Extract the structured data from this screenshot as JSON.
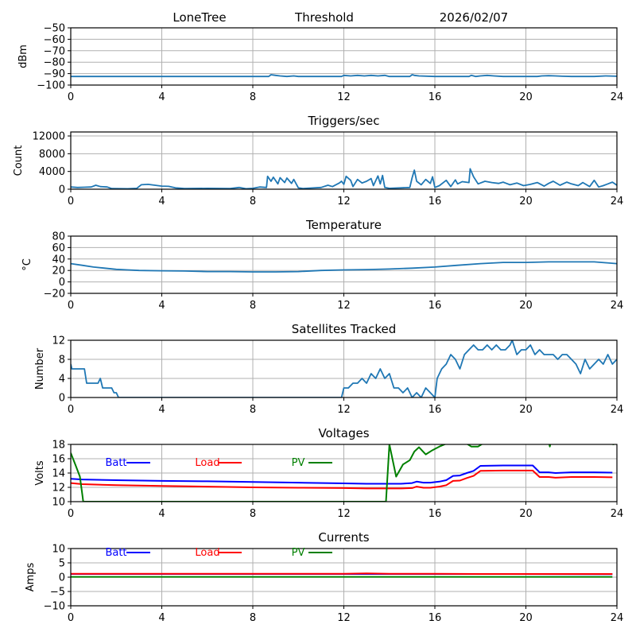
{
  "header": {
    "station": "LoneTree",
    "mode": "Threshold",
    "date": "2026/02/07"
  },
  "chart_data": [
    {
      "type": "line",
      "id": "signal",
      "title": "",
      "ylabel": "dBm",
      "xlim": [
        0,
        24
      ],
      "ylim": [
        -100,
        -50
      ],
      "xticks": [
        0,
        4,
        8,
        12,
        16,
        20,
        24
      ],
      "yticks": [
        -100,
        -90,
        -80,
        -70,
        -60,
        -50
      ],
      "ytick_labels": [
        "−100",
        "−90",
        "−80",
        "−70",
        "−60",
        "−50"
      ],
      "grid": true,
      "series": [
        {
          "name": "Threshold",
          "color": "#1f77b4",
          "x": [
            0,
            8.7,
            8.8,
            9.0,
            9.2,
            9.5,
            9.8,
            10.0,
            11.9,
            12.0,
            12.3,
            12.6,
            12.9,
            13.2,
            13.5,
            13.8,
            14.0,
            14.9,
            15.0,
            15.1,
            15.3,
            16.0,
            17.5,
            17.6,
            17.8,
            18.0,
            18.3,
            18.6,
            19.0,
            20.5,
            20.7,
            21.0,
            21.3,
            21.6,
            22.0,
            23.0,
            23.5,
            24.0
          ],
          "y": [
            -92.5,
            -92.5,
            -91,
            -91.5,
            -92,
            -92.5,
            -92,
            -92.5,
            -92.5,
            -91.5,
            -92,
            -91.5,
            -92,
            -91.5,
            -92,
            -91.5,
            -92.5,
            -92.5,
            -91,
            -91.5,
            -92,
            -92.5,
            -92.5,
            -91.5,
            -92.5,
            -92,
            -91.5,
            -92,
            -92.5,
            -92.5,
            -92,
            -91.8,
            -92,
            -92.3,
            -92.5,
            -92.5,
            -92,
            -92.3
          ]
        }
      ]
    },
    {
      "type": "line",
      "id": "triggers",
      "title": "Triggers/sec",
      "ylabel": "Count",
      "xlim": [
        0,
        24
      ],
      "ylim": [
        0,
        12900
      ],
      "xticks": [
        0,
        4,
        8,
        12,
        16,
        20,
        24
      ],
      "yticks": [
        0,
        4000,
        8000,
        12000
      ],
      "ytick_labels": [
        "0",
        "4000",
        "8000",
        "12000"
      ],
      "grid": true,
      "series": [
        {
          "name": "Triggers",
          "color": "#1f77b4",
          "x": [
            0,
            0.3,
            0.6,
            0.9,
            1.1,
            1.3,
            1.6,
            1.8,
            2.5,
            2.9,
            3.1,
            3.4,
            3.7,
            4.0,
            4.3,
            4.6,
            5.0,
            6.0,
            7.0,
            7.4,
            7.7,
            8.0,
            8.3,
            8.6,
            8.65,
            8.8,
            8.9,
            9.1,
            9.2,
            9.4,
            9.5,
            9.7,
            9.8,
            10.0,
            10.2,
            10.5,
            11.0,
            11.3,
            11.5,
            11.8,
            11.9,
            12.0,
            12.1,
            12.3,
            12.4,
            12.6,
            12.8,
            13.0,
            13.2,
            13.3,
            13.5,
            13.6,
            13.7,
            13.8,
            14.0,
            14.5,
            14.9,
            15.0,
            15.1,
            15.2,
            15.4,
            15.6,
            15.8,
            15.9,
            16.0,
            16.2,
            16.5,
            16.7,
            16.9,
            17.0,
            17.2,
            17.5,
            17.55,
            17.7,
            17.9,
            18.2,
            18.5,
            18.8,
            19.0,
            19.3,
            19.6,
            19.9,
            20.2,
            20.5,
            20.8,
            21.0,
            21.2,
            21.5,
            21.8,
            22.0,
            22.3,
            22.5,
            22.8,
            23.0,
            23.2,
            23.4,
            23.6,
            23.8,
            24.0
          ],
          "y": [
            500,
            400,
            450,
            500,
            900,
            600,
            500,
            150,
            100,
            200,
            1000,
            1100,
            900,
            700,
            650,
            300,
            150,
            200,
            150,
            400,
            100,
            200,
            500,
            400,
            2900,
            1800,
            2700,
            1200,
            2600,
            1500,
            2500,
            1300,
            2200,
            300,
            150,
            250,
            400,
            900,
            600,
            1400,
            1800,
            1100,
            2900,
            2000,
            600,
            2200,
            1400,
            1800,
            2400,
            800,
            3000,
            1200,
            3100,
            400,
            200,
            300,
            400,
            2600,
            4300,
            1800,
            1000,
            2200,
            1300,
            2800,
            400,
            800,
            2000,
            600,
            2100,
            1200,
            1700,
            1500,
            4600,
            2800,
            1200,
            1800,
            1500,
            1300,
            1600,
            1000,
            1400,
            800,
            1100,
            1500,
            700,
            1300,
            1800,
            900,
            1600,
            1200,
            800,
            1500,
            600,
            2000,
            500,
            800,
            1200,
            1600,
            900
          ]
        }
      ]
    },
    {
      "type": "line",
      "id": "temperature",
      "title": "Temperature",
      "ylabel": "°C",
      "xlim": [
        0,
        24
      ],
      "ylim": [
        -20,
        80
      ],
      "xticks": [
        0,
        4,
        8,
        12,
        16,
        20,
        24
      ],
      "yticks": [
        -20,
        0,
        20,
        40,
        60,
        80
      ],
      "ytick_labels": [
        "−20",
        "0",
        "20",
        "40",
        "60",
        "80"
      ],
      "grid": true,
      "series": [
        {
          "name": "Temperature",
          "color": "#1f77b4",
          "x": [
            0,
            0.5,
            1.0,
            1.5,
            2.0,
            2.5,
            3.0,
            4.0,
            5.0,
            6.0,
            7.0,
            8.0,
            9.0,
            10.0,
            11.0,
            12.0,
            13.0,
            14.0,
            15.0,
            16.0,
            17.0,
            18.0,
            19.0,
            20.0,
            21.0,
            22.0,
            23.0,
            23.5,
            24.0
          ],
          "y": [
            32,
            29,
            26,
            24,
            22,
            21,
            20,
            19.5,
            19,
            18,
            18,
            17.5,
            17.5,
            18,
            20,
            21,
            21.5,
            22.5,
            24,
            26,
            29,
            32,
            34,
            34,
            35,
            35,
            35,
            33.5,
            32
          ]
        }
      ]
    },
    {
      "type": "line",
      "id": "satellites",
      "title": "Satellites Tracked",
      "ylabel": "Number",
      "xlim": [
        0,
        24
      ],
      "ylim": [
        0,
        12
      ],
      "xticks": [
        0,
        4,
        8,
        12,
        16,
        20,
        24
      ],
      "yticks": [
        0,
        4,
        8,
        12
      ],
      "ytick_labels": [
        "0",
        "4",
        "8",
        "12"
      ],
      "grid": true,
      "series": [
        {
          "name": "Satellites",
          "color": "#1f77b4",
          "x": [
            0,
            0.05,
            0.1,
            0.6,
            0.7,
            1.0,
            1.2,
            1.3,
            1.4,
            1.6,
            1.8,
            1.9,
            2.0,
            2.1,
            4.0,
            8.0,
            11.9,
            12.0,
            12.2,
            12.4,
            12.6,
            12.8,
            13.0,
            13.2,
            13.4,
            13.6,
            13.8,
            14.0,
            14.2,
            14.4,
            14.6,
            14.8,
            15.0,
            15.2,
            15.4,
            15.6,
            15.8,
            16.0,
            16.1,
            16.3,
            16.5,
            16.7,
            16.9,
            17.1,
            17.3,
            17.5,
            17.7,
            17.9,
            18.1,
            18.3,
            18.5,
            18.7,
            18.9,
            19.1,
            19.3,
            19.4,
            19.6,
            19.8,
            20.0,
            20.2,
            20.4,
            20.6,
            20.8,
            21.0,
            21.2,
            21.4,
            21.6,
            21.8,
            22.0,
            22.2,
            22.4,
            22.6,
            22.8,
            23.0,
            23.2,
            23.4,
            23.6,
            23.8,
            24.0
          ],
          "y": [
            7,
            6,
            6,
            6,
            3,
            3,
            3,
            4,
            2,
            2,
            2,
            1,
            1,
            0,
            0,
            0,
            0,
            2,
            2,
            3,
            3,
            4,
            3,
            5,
            4,
            6,
            4,
            5,
            2,
            2,
            1,
            2,
            0,
            1,
            0,
            2,
            1,
            0,
            4,
            6,
            7,
            9,
            8,
            6,
            9,
            10,
            11,
            10,
            10,
            11,
            10,
            11,
            10,
            10,
            11,
            12,
            9,
            10,
            10,
            11,
            9,
            10,
            9,
            9,
            9,
            8,
            9,
            9,
            8,
            7,
            5,
            8,
            6,
            7,
            8,
            7,
            9,
            7,
            8
          ]
        }
      ]
    },
    {
      "type": "line",
      "id": "voltages",
      "title": "Voltages",
      "ylabel": "Volts",
      "xlim": [
        0,
        24
      ],
      "ylim": [
        10,
        18
      ],
      "xticks": [
        0,
        4,
        8,
        12,
        16,
        20,
        24
      ],
      "yticks": [
        10,
        12,
        14,
        16,
        18
      ],
      "ytick_labels": [
        "10",
        "12",
        "14",
        "16",
        "18"
      ],
      "grid": true,
      "legend": [
        "Batt",
        "Load",
        "PV"
      ],
      "legend_placement": "top-inside-row",
      "series": [
        {
          "name": "Batt",
          "color": "#0000ff",
          "x": [
            0,
            0.5,
            2,
            4,
            6,
            8,
            10,
            12,
            13,
            14,
            14.5,
            15,
            15.2,
            15.5,
            15.8,
            16.2,
            16.5,
            16.8,
            17.1,
            17.4,
            17.7,
            18.0,
            19.0,
            20.0,
            20.3,
            20.6,
            21.0,
            21.3,
            22,
            23,
            23.8
          ],
          "y": [
            13.2,
            13.1,
            13.0,
            12.9,
            12.85,
            12.75,
            12.65,
            12.55,
            12.5,
            12.5,
            12.5,
            12.6,
            12.8,
            12.65,
            12.65,
            12.8,
            13.0,
            13.6,
            13.65,
            14.0,
            14.3,
            15.0,
            15.05,
            15.05,
            15.05,
            14.1,
            14.1,
            14.0,
            14.1,
            14.1,
            14.05
          ]
        },
        {
          "name": "Load",
          "color": "#ff0000",
          "x": [
            0,
            0.5,
            2,
            4,
            6,
            8,
            10,
            12,
            13,
            14,
            14.5,
            15,
            15.2,
            15.5,
            15.8,
            16.2,
            16.5,
            16.8,
            17.1,
            17.4,
            17.7,
            18.0,
            19.0,
            20.0,
            20.3,
            20.6,
            21.0,
            21.3,
            22,
            23,
            23.8
          ],
          "y": [
            12.6,
            12.45,
            12.3,
            12.2,
            12.1,
            12.0,
            11.95,
            11.9,
            11.85,
            11.85,
            11.85,
            11.9,
            12.1,
            11.95,
            11.95,
            12.1,
            12.3,
            12.9,
            12.95,
            13.3,
            13.6,
            14.3,
            14.35,
            14.35,
            14.35,
            13.45,
            13.45,
            13.35,
            13.45,
            13.45,
            13.4
          ]
        },
        {
          "name": "PV",
          "color": "#008000",
          "x": [
            0,
            0.2,
            0.4,
            0.5,
            0.55,
            13.85,
            14.0,
            14.3,
            14.6,
            14.9,
            15.1,
            15.3,
            15.6,
            15.9,
            16.2,
            16.5,
            16.8,
            17.2,
            17.6,
            17.9,
            18.2,
            20.0,
            21.0,
            21.05,
            21.1,
            23.8,
            23.85
          ],
          "y": [
            16.8,
            15.2,
            13.5,
            11.2,
            10.0,
            10.0,
            18.0,
            13.5,
            15.2,
            15.8,
            17.0,
            17.6,
            16.6,
            17.2,
            17.7,
            18.1,
            18.3,
            18.5,
            17.7,
            17.7,
            18.3,
            18.5,
            18.5,
            17.7,
            18.5,
            18.5,
            17.9
          ]
        }
      ]
    },
    {
      "type": "line",
      "id": "currents",
      "title": "Currents",
      "ylabel": "Amps",
      "xlim": [
        0,
        24
      ],
      "ylim": [
        -10,
        10
      ],
      "xticks": [
        0,
        4,
        8,
        12,
        16,
        20,
        24
      ],
      "yticks": [
        -10,
        -5,
        0,
        5,
        10
      ],
      "ytick_labels": [
        "−10",
        "−5",
        "0",
        "5",
        "10"
      ],
      "grid": true,
      "legend": [
        "Batt",
        "Load",
        "PV"
      ],
      "legend_placement": "top-inside-row",
      "series": [
        {
          "name": "Batt",
          "color": "#0000ff",
          "x": [
            0,
            6,
            12,
            18,
            23.8
          ],
          "y": [
            1.1,
            1.1,
            1.1,
            1.1,
            1.05
          ]
        },
        {
          "name": "Load",
          "color": "#ff0000",
          "x": [
            0,
            4,
            8,
            12,
            13,
            14,
            16,
            18,
            20,
            23.8
          ],
          "y": [
            1.2,
            1.2,
            1.2,
            1.2,
            1.3,
            1.2,
            1.2,
            1.1,
            1.1,
            1.1
          ]
        },
        {
          "name": "PV",
          "color": "#008000",
          "x": [
            0,
            6,
            12,
            18,
            23.8
          ],
          "y": [
            0.1,
            0.1,
            0.1,
            0.1,
            0.1
          ]
        }
      ]
    }
  ]
}
